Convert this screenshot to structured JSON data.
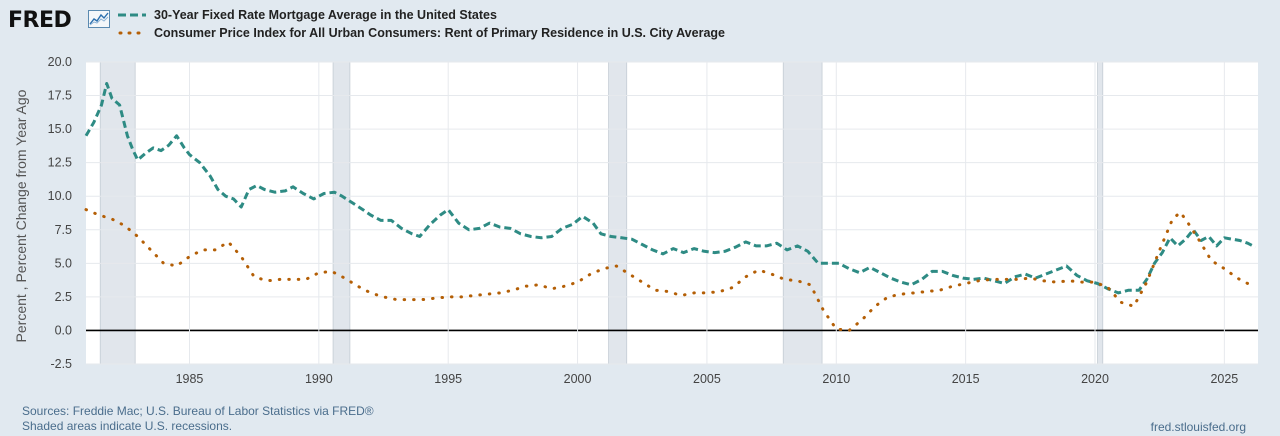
{
  "header": {
    "logo_text": "FRED"
  },
  "legend": [
    {
      "label": "30-Year Fixed Rate Mortgage Average in the United States",
      "color": "#2e8b84",
      "style": "dashed"
    },
    {
      "label": "Consumer Price Index for All Urban Consumers: Rent of Primary Residence in U.S. City Average",
      "color": "#b45f06",
      "style": "dotted"
    }
  ],
  "footer": {
    "sources": "Sources: Freddie Mac; U.S. Bureau of Labor Statistics via FRED®",
    "shaded": "Shaded areas indicate U.S. recessions.",
    "site": "fred.stlouisfed.org"
  },
  "chart_data": {
    "type": "line",
    "title": "",
    "xlabel": "",
    "ylabel": "Percent , Percent Change from Year Ago",
    "xlim": [
      1981.0,
      2026.3
    ],
    "ylim": [
      -2.5,
      20.0
    ],
    "yticks": [
      "-2.5",
      "0.0",
      "2.5",
      "5.0",
      "7.5",
      "10.0",
      "12.5",
      "15.0",
      "17.5",
      "20.0"
    ],
    "ytick_values": [
      -2.5,
      0,
      2.5,
      5,
      7.5,
      10,
      12.5,
      15,
      17.5,
      20
    ],
    "xticks": [
      "1985",
      "1990",
      "1995",
      "2000",
      "2005",
      "2010",
      "2015",
      "2020",
      "2025"
    ],
    "xtick_values": [
      1985,
      1990,
      1995,
      2000,
      2005,
      2010,
      2015,
      2020,
      2025
    ],
    "recessions": [
      [
        1981.55,
        1982.9
      ],
      [
        1990.55,
        1991.2
      ],
      [
        2001.2,
        2001.9
      ],
      [
        2007.95,
        2009.45
      ],
      [
        2020.1,
        2020.3
      ]
    ],
    "series": [
      {
        "name": "30-Year Fixed Rate Mortgage Average in the United States",
        "x": [
          1981.0,
          1981.3,
          1981.6,
          1981.8,
          1982.0,
          1982.3,
          1982.6,
          1982.8,
          1983.0,
          1983.3,
          1983.6,
          1983.9,
          1984.2,
          1984.5,
          1984.8,
          1985.0,
          1985.4,
          1985.8,
          1986.1,
          1986.4,
          1986.7,
          1987.0,
          1987.3,
          1987.6,
          1987.9,
          1988.3,
          1988.7,
          1989.0,
          1989.4,
          1989.8,
          1990.2,
          1990.6,
          1990.9,
          1991.3,
          1991.7,
          1992.0,
          1992.4,
          1992.8,
          1993.2,
          1993.6,
          1993.9,
          1994.3,
          1994.7,
          1995.0,
          1995.4,
          1995.8,
          1996.2,
          1996.6,
          1997.0,
          1997.4,
          1997.8,
          1998.2,
          1998.6,
          1999.0,
          1999.4,
          1999.8,
          2000.2,
          2000.6,
          2000.9,
          2001.3,
          2001.7,
          2002.1,
          2002.5,
          2002.9,
          2003.3,
          2003.7,
          2004.1,
          2004.5,
          2004.9,
          2005.3,
          2005.7,
          2006.1,
          2006.5,
          2006.9,
          2007.3,
          2007.7,
          2008.1,
          2008.5,
          2008.9,
          2009.3,
          2009.7,
          2010.1,
          2010.5,
          2010.9,
          2011.3,
          2011.7,
          2012.1,
          2012.5,
          2012.9,
          2013.3,
          2013.7,
          2014.1,
          2014.5,
          2014.9,
          2015.3,
          2015.7,
          2016.1,
          2016.5,
          2016.9,
          2017.3,
          2017.7,
          2018.1,
          2018.5,
          2018.9,
          2019.3,
          2019.7,
          2020.1,
          2020.5,
          2020.9,
          2021.3,
          2021.7,
          2022.0,
          2022.3,
          2022.6,
          2022.9,
          2023.2,
          2023.5,
          2023.8,
          2024.1,
          2024.4,
          2024.7,
          2025.0,
          2025.3,
          2025.6,
          2025.9,
          2026.2
        ],
        "values": [
          14.5,
          15.5,
          16.8,
          18.4,
          17.3,
          16.8,
          14.5,
          13.5,
          12.7,
          13.2,
          13.6,
          13.4,
          13.8,
          14.5,
          13.6,
          13.1,
          12.5,
          11.5,
          10.5,
          10.0,
          9.8,
          9.2,
          10.5,
          10.8,
          10.5,
          10.3,
          10.4,
          10.7,
          10.2,
          9.8,
          10.2,
          10.3,
          10.0,
          9.5,
          9.0,
          8.6,
          8.2,
          8.2,
          7.6,
          7.2,
          7.0,
          7.9,
          8.6,
          9.0,
          8.0,
          7.5,
          7.6,
          8.0,
          7.7,
          7.6,
          7.2,
          7.0,
          6.9,
          7.0,
          7.6,
          7.9,
          8.5,
          8.0,
          7.2,
          7.0,
          6.9,
          6.8,
          6.4,
          6.0,
          5.7,
          6.1,
          5.8,
          6.1,
          5.9,
          5.8,
          5.9,
          6.2,
          6.6,
          6.3,
          6.3,
          6.5,
          6.0,
          6.3,
          5.9,
          5.0,
          5.0,
          5.0,
          4.6,
          4.3,
          4.7,
          4.3,
          3.9,
          3.6,
          3.4,
          3.8,
          4.4,
          4.4,
          4.1,
          3.9,
          3.8,
          3.9,
          3.7,
          3.5,
          4.0,
          4.2,
          3.9,
          4.2,
          4.5,
          4.8,
          4.1,
          3.7,
          3.5,
          3.1,
          2.8,
          3.0,
          3.0,
          3.8,
          5.0,
          5.8,
          6.9,
          6.3,
          6.8,
          7.5,
          6.7,
          7.0,
          6.3,
          6.9,
          6.8,
          6.7,
          6.5,
          6.2
        ]
      },
      {
        "name": "Consumer Price Index for All Urban Consumers: Rent of Primary Residence in U.S. City Average",
        "x": [
          1981.0,
          1981.5,
          1982.0,
          1982.5,
          1983.0,
          1983.5,
          1984.0,
          1984.5,
          1985.0,
          1985.5,
          1986.0,
          1986.5,
          1987.0,
          1987.5,
          1988.0,
          1988.5,
          1989.0,
          1989.5,
          1990.0,
          1990.5,
          1991.0,
          1991.5,
          1992.0,
          1992.5,
          1993.0,
          1993.5,
          1994.0,
          1994.5,
          1995.0,
          1995.5,
          1996.0,
          1996.5,
          1997.0,
          1997.5,
          1998.0,
          1998.5,
          1999.0,
          1999.5,
          2000.0,
          2000.5,
          2001.0,
          2001.5,
          2002.0,
          2002.5,
          2003.0,
          2003.5,
          2004.0,
          2004.5,
          2005.0,
          2005.5,
          2006.0,
          2006.5,
          2007.0,
          2007.5,
          2008.0,
          2008.5,
          2009.0,
          2009.5,
          2010.0,
          2010.5,
          2011.0,
          2011.5,
          2012.0,
          2012.5,
          2013.0,
          2013.5,
          2014.0,
          2014.5,
          2015.0,
          2015.5,
          2016.0,
          2016.5,
          2017.0,
          2017.5,
          2018.0,
          2018.5,
          2019.0,
          2019.5,
          2020.0,
          2020.5,
          2021.0,
          2021.5,
          2022.0,
          2022.5,
          2023.0,
          2023.3,
          2023.6,
          2024.0,
          2024.5,
          2025.0,
          2025.5,
          2025.9
        ],
        "values": [
          9.0,
          8.6,
          8.3,
          7.8,
          7.0,
          6.0,
          5.0,
          4.8,
          5.5,
          6.0,
          6.0,
          6.6,
          5.5,
          4.0,
          3.7,
          3.8,
          3.8,
          3.8,
          4.3,
          4.4,
          3.9,
          3.3,
          2.8,
          2.5,
          2.3,
          2.3,
          2.3,
          2.4,
          2.5,
          2.5,
          2.6,
          2.7,
          2.8,
          3.0,
          3.3,
          3.4,
          3.1,
          3.3,
          3.6,
          4.2,
          4.6,
          4.8,
          4.2,
          3.6,
          3.0,
          2.9,
          2.6,
          2.8,
          2.8,
          2.9,
          3.2,
          4.0,
          4.5,
          4.2,
          3.8,
          3.7,
          3.4,
          1.5,
          0.1,
          0.0,
          0.8,
          1.8,
          2.5,
          2.7,
          2.8,
          2.9,
          3.0,
          3.3,
          3.5,
          3.7,
          3.8,
          3.8,
          3.8,
          3.9,
          3.7,
          3.6,
          3.7,
          3.6,
          3.6,
          3.2,
          2.1,
          1.8,
          3.6,
          6.0,
          8.3,
          8.8,
          8.0,
          6.8,
          5.2,
          4.6,
          3.9,
          3.5
        ]
      }
    ]
  }
}
